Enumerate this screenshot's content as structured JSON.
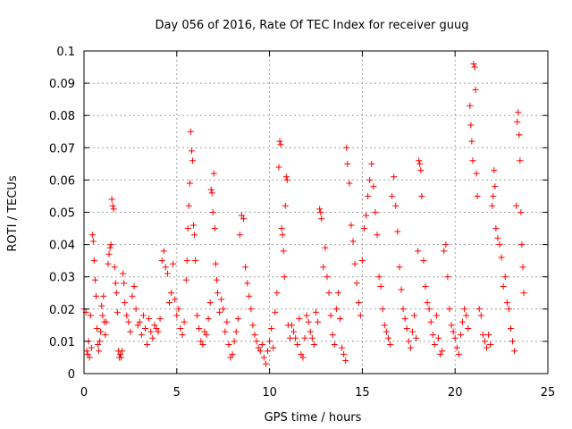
{
  "chart_data": {
    "type": "scatter",
    "title": "Day 056 of 2016, Rate Of TEC Index for receiver guug",
    "xlabel": "GPS time / hours",
    "ylabel": "ROTI / TECUs",
    "xlim": [
      0,
      25
    ],
    "ylim": [
      0,
      0.1
    ],
    "xticks": [
      0,
      5,
      10,
      15,
      20,
      25
    ],
    "xtick_labels": [
      "0",
      "5",
      "10",
      "15",
      "20",
      "25"
    ],
    "yticks": [
      0,
      0.01,
      0.02,
      0.03,
      0.04,
      0.05,
      0.06,
      0.07,
      0.08,
      0.09,
      0.1
    ],
    "ytick_labels": [
      "0",
      "0.01",
      "0.02",
      "0.03",
      "0.04",
      "0.05",
      "0.06",
      "0.07",
      "0.08",
      "0.09",
      "0.1"
    ],
    "grid": true,
    "marker": "+",
    "marker_color": "#ff0000",
    "series": [
      {
        "points": [
          [
            0.0,
            0.02
          ],
          [
            0.1,
            0.019
          ],
          [
            0.15,
            0.007
          ],
          [
            0.2,
            0.006
          ],
          [
            0.25,
            0.01
          ],
          [
            0.3,
            0.005
          ],
          [
            0.35,
            0.018
          ],
          [
            0.4,
            0.008
          ],
          [
            0.45,
            0.043
          ],
          [
            0.5,
            0.041
          ],
          [
            0.55,
            0.035
          ],
          [
            0.6,
            0.029
          ],
          [
            0.65,
            0.024
          ],
          [
            0.7,
            0.014
          ],
          [
            0.75,
            0.009
          ],
          [
            0.8,
            0.007
          ],
          [
            0.85,
            0.01
          ],
          [
            0.9,
            0.013
          ],
          [
            0.95,
            0.021
          ],
          [
            1.0,
            0.018
          ],
          [
            1.05,
            0.024
          ],
          [
            1.1,
            0.016
          ],
          [
            1.15,
            0.012
          ],
          [
            1.2,
            0.016
          ],
          [
            1.3,
            0.034
          ],
          [
            1.35,
            0.037
          ],
          [
            1.4,
            0.039
          ],
          [
            1.45,
            0.04
          ],
          [
            1.5,
            0.054
          ],
          [
            1.55,
            0.052
          ],
          [
            1.6,
            0.051
          ],
          [
            1.65,
            0.033
          ],
          [
            1.7,
            0.028
          ],
          [
            1.75,
            0.025
          ],
          [
            1.8,
            0.019
          ],
          [
            1.85,
            0.007
          ],
          [
            1.9,
            0.005
          ],
          [
            1.95,
            0.006
          ],
          [
            2.0,
            0.005
          ],
          [
            2.05,
            0.007
          ],
          [
            2.1,
            0.031
          ],
          [
            2.15,
            0.028
          ],
          [
            2.2,
            0.022
          ],
          [
            2.3,
            0.018
          ],
          [
            2.4,
            0.016
          ],
          [
            2.5,
            0.013
          ],
          [
            2.6,
            0.024
          ],
          [
            2.7,
            0.027
          ],
          [
            2.8,
            0.02
          ],
          [
            2.9,
            0.015
          ],
          [
            3.0,
            0.016
          ],
          [
            3.1,
            0.012
          ],
          [
            3.2,
            0.018
          ],
          [
            3.3,
            0.014
          ],
          [
            3.4,
            0.009
          ],
          [
            3.5,
            0.017
          ],
          [
            3.6,
            0.013
          ],
          [
            3.7,
            0.011
          ],
          [
            3.8,
            0.015
          ],
          [
            3.9,
            0.014
          ],
          [
            4.0,
            0.013
          ],
          [
            4.1,
            0.017
          ],
          [
            4.2,
            0.035
          ],
          [
            4.3,
            0.038
          ],
          [
            4.4,
            0.033
          ],
          [
            4.5,
            0.031
          ],
          [
            4.6,
            0.022
          ],
          [
            4.7,
            0.025
          ],
          [
            4.8,
            0.034
          ],
          [
            4.9,
            0.023
          ],
          [
            5.0,
            0.018
          ],
          [
            5.1,
            0.02
          ],
          [
            5.2,
            0.014
          ],
          [
            5.3,
            0.012
          ],
          [
            5.4,
            0.016
          ],
          [
            5.5,
            0.029
          ],
          [
            5.55,
            0.035
          ],
          [
            5.6,
            0.045
          ],
          [
            5.65,
            0.052
          ],
          [
            5.7,
            0.059
          ],
          [
            5.75,
            0.075
          ],
          [
            5.8,
            0.069
          ],
          [
            5.85,
            0.066
          ],
          [
            5.9,
            0.046
          ],
          [
            5.95,
            0.043
          ],
          [
            6.0,
            0.035
          ],
          [
            6.1,
            0.018
          ],
          [
            6.2,
            0.014
          ],
          [
            6.3,
            0.01
          ],
          [
            6.4,
            0.009
          ],
          [
            6.5,
            0.013
          ],
          [
            6.6,
            0.012
          ],
          [
            6.7,
            0.017
          ],
          [
            6.8,
            0.022
          ],
          [
            6.85,
            0.057
          ],
          [
            6.9,
            0.056
          ],
          [
            6.95,
            0.05
          ],
          [
            7.0,
            0.062
          ],
          [
            7.05,
            0.045
          ],
          [
            7.1,
            0.034
          ],
          [
            7.15,
            0.029
          ],
          [
            7.2,
            0.025
          ],
          [
            7.3,
            0.019
          ],
          [
            7.4,
            0.023
          ],
          [
            7.5,
            0.02
          ],
          [
            7.6,
            0.013
          ],
          [
            7.7,
            0.016
          ],
          [
            7.8,
            0.009
          ],
          [
            7.9,
            0.005
          ],
          [
            8.0,
            0.006
          ],
          [
            8.1,
            0.01
          ],
          [
            8.2,
            0.013
          ],
          [
            8.3,
            0.017
          ],
          [
            8.4,
            0.043
          ],
          [
            8.5,
            0.049
          ],
          [
            8.6,
            0.048
          ],
          [
            8.7,
            0.033
          ],
          [
            8.8,
            0.028
          ],
          [
            8.9,
            0.024
          ],
          [
            9.0,
            0.02
          ],
          [
            9.1,
            0.015
          ],
          [
            9.2,
            0.012
          ],
          [
            9.3,
            0.01
          ],
          [
            9.4,
            0.008
          ],
          [
            9.5,
            0.007
          ],
          [
            9.6,
            0.009
          ],
          [
            9.7,
            0.005
          ],
          [
            9.8,
            0.003
          ],
          [
            9.9,
            0.007
          ],
          [
            10.0,
            0.01
          ],
          [
            10.1,
            0.014
          ],
          [
            10.2,
            0.008
          ],
          [
            10.3,
            0.019
          ],
          [
            10.4,
            0.025
          ],
          [
            10.5,
            0.064
          ],
          [
            10.55,
            0.072
          ],
          [
            10.6,
            0.071
          ],
          [
            10.65,
            0.045
          ],
          [
            10.7,
            0.043
          ],
          [
            10.75,
            0.038
          ],
          [
            10.8,
            0.03
          ],
          [
            10.85,
            0.052
          ],
          [
            10.9,
            0.061
          ],
          [
            10.95,
            0.06
          ],
          [
            11.0,
            0.015
          ],
          [
            11.1,
            0.011
          ],
          [
            11.2,
            0.015
          ],
          [
            11.3,
            0.013
          ],
          [
            11.4,
            0.011
          ],
          [
            11.5,
            0.009
          ],
          [
            11.6,
            0.017
          ],
          [
            11.7,
            0.006
          ],
          [
            11.8,
            0.005
          ],
          [
            11.9,
            0.011
          ],
          [
            12.0,
            0.018
          ],
          [
            12.1,
            0.016
          ],
          [
            12.2,
            0.013
          ],
          [
            12.3,
            0.011
          ],
          [
            12.4,
            0.009
          ],
          [
            12.5,
            0.019
          ],
          [
            12.6,
            0.016
          ],
          [
            12.7,
            0.051
          ],
          [
            12.75,
            0.05
          ],
          [
            12.8,
            0.048
          ],
          [
            12.9,
            0.033
          ],
          [
            13.0,
            0.039
          ],
          [
            13.1,
            0.03
          ],
          [
            13.2,
            0.025
          ],
          [
            13.3,
            0.018
          ],
          [
            13.4,
            0.012
          ],
          [
            13.5,
            0.009
          ],
          [
            13.6,
            0.02
          ],
          [
            13.7,
            0.025
          ],
          [
            13.8,
            0.017
          ],
          [
            13.9,
            0.008
          ],
          [
            14.0,
            0.006
          ],
          [
            14.1,
            0.004
          ],
          [
            14.15,
            0.07
          ],
          [
            14.2,
            0.065
          ],
          [
            14.3,
            0.059
          ],
          [
            14.4,
            0.046
          ],
          [
            14.5,
            0.041
          ],
          [
            14.6,
            0.034
          ],
          [
            14.7,
            0.028
          ],
          [
            14.8,
            0.022
          ],
          [
            14.9,
            0.018
          ],
          [
            15.0,
            0.035
          ],
          [
            15.1,
            0.045
          ],
          [
            15.2,
            0.049
          ],
          [
            15.3,
            0.055
          ],
          [
            15.4,
            0.06
          ],
          [
            15.5,
            0.065
          ],
          [
            15.6,
            0.058
          ],
          [
            15.7,
            0.05
          ],
          [
            15.8,
            0.043
          ],
          [
            15.9,
            0.03
          ],
          [
            16.0,
            0.027
          ],
          [
            16.1,
            0.02
          ],
          [
            16.2,
            0.015
          ],
          [
            16.3,
            0.013
          ],
          [
            16.4,
            0.011
          ],
          [
            16.5,
            0.009
          ],
          [
            16.6,
            0.055
          ],
          [
            16.7,
            0.061
          ],
          [
            16.8,
            0.052
          ],
          [
            16.9,
            0.044
          ],
          [
            17.0,
            0.033
          ],
          [
            17.1,
            0.026
          ],
          [
            17.2,
            0.02
          ],
          [
            17.3,
            0.017
          ],
          [
            17.4,
            0.014
          ],
          [
            17.5,
            0.01
          ],
          [
            17.6,
            0.008
          ],
          [
            17.7,
            0.013
          ],
          [
            17.8,
            0.018
          ],
          [
            17.9,
            0.011
          ],
          [
            18.0,
            0.038
          ],
          [
            18.05,
            0.066
          ],
          [
            18.1,
            0.065
          ],
          [
            18.15,
            0.063
          ],
          [
            18.2,
            0.055
          ],
          [
            18.3,
            0.035
          ],
          [
            18.4,
            0.027
          ],
          [
            18.5,
            0.022
          ],
          [
            18.6,
            0.02
          ],
          [
            18.7,
            0.016
          ],
          [
            18.8,
            0.012
          ],
          [
            18.9,
            0.009
          ],
          [
            19.0,
            0.018
          ],
          [
            19.1,
            0.011
          ],
          [
            19.2,
            0.006
          ],
          [
            19.3,
            0.007
          ],
          [
            19.4,
            0.038
          ],
          [
            19.5,
            0.04
          ],
          [
            19.6,
            0.03
          ],
          [
            19.7,
            0.02
          ],
          [
            19.8,
            0.015
          ],
          [
            19.9,
            0.013
          ],
          [
            20.0,
            0.011
          ],
          [
            20.1,
            0.008
          ],
          [
            20.2,
            0.006
          ],
          [
            20.3,
            0.012
          ],
          [
            20.4,
            0.016
          ],
          [
            20.5,
            0.02
          ],
          [
            20.6,
            0.018
          ],
          [
            20.7,
            0.014
          ],
          [
            20.8,
            0.083
          ],
          [
            20.85,
            0.077
          ],
          [
            20.9,
            0.072
          ],
          [
            20.95,
            0.066
          ],
          [
            21.0,
            0.096
          ],
          [
            21.05,
            0.095
          ],
          [
            21.1,
            0.088
          ],
          [
            21.15,
            0.062
          ],
          [
            21.2,
            0.055
          ],
          [
            21.3,
            0.02
          ],
          [
            21.4,
            0.018
          ],
          [
            21.5,
            0.012
          ],
          [
            21.6,
            0.01
          ],
          [
            21.7,
            0.008
          ],
          [
            21.8,
            0.012
          ],
          [
            21.9,
            0.009
          ],
          [
            22.0,
            0.052
          ],
          [
            22.05,
            0.055
          ],
          [
            22.1,
            0.063
          ],
          [
            22.15,
            0.058
          ],
          [
            22.2,
            0.045
          ],
          [
            22.3,
            0.042
          ],
          [
            22.4,
            0.04
          ],
          [
            22.5,
            0.036
          ],
          [
            22.6,
            0.027
          ],
          [
            22.7,
            0.03
          ],
          [
            22.8,
            0.022
          ],
          [
            22.9,
            0.02
          ],
          [
            23.0,
            0.014
          ],
          [
            23.1,
            0.01
          ],
          [
            23.2,
            0.007
          ],
          [
            23.3,
            0.052
          ],
          [
            23.35,
            0.078
          ],
          [
            23.4,
            0.081
          ],
          [
            23.45,
            0.074
          ],
          [
            23.5,
            0.066
          ],
          [
            23.55,
            0.05
          ],
          [
            23.6,
            0.04
          ],
          [
            23.65,
            0.033
          ],
          [
            23.7,
            0.025
          ]
        ]
      }
    ]
  }
}
